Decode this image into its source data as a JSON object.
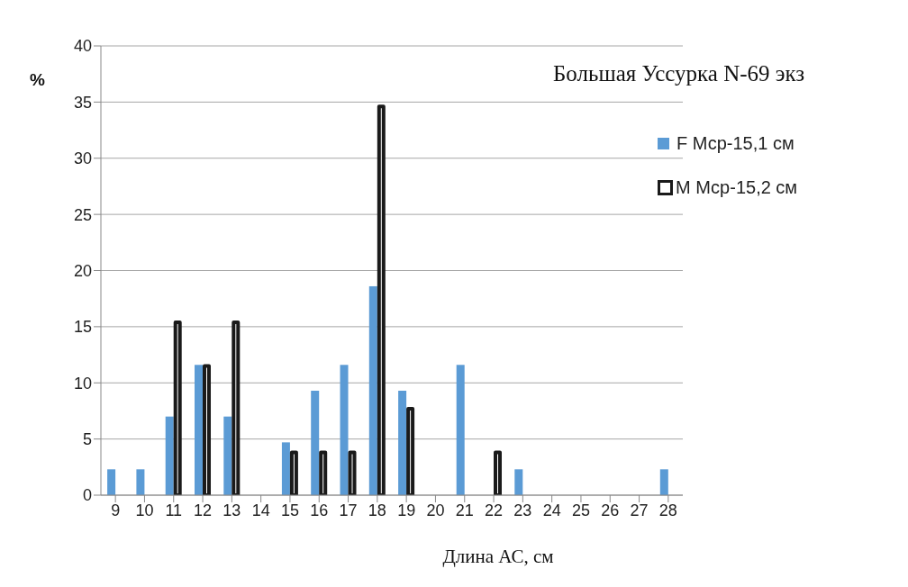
{
  "chart_data": {
    "type": "bar",
    "title": "Большая Уссурка N-69 экз",
    "xlabel": "Длина АС, см",
    "ylabel": "%",
    "categories": [
      "9",
      "10",
      "11",
      "12",
      "13",
      "14",
      "15",
      "16",
      "17",
      "18",
      "19",
      "20",
      "21",
      "22",
      "23",
      "24",
      "25",
      "26",
      "27",
      "28"
    ],
    "series": [
      {
        "name": "F Мср-15,1 см",
        "color": "#5b9bd5",
        "values": [
          2.3,
          2.3,
          7.0,
          11.6,
          7.0,
          0,
          4.7,
          9.3,
          11.6,
          18.6,
          9.3,
          0,
          11.6,
          0,
          2.3,
          0,
          0,
          0,
          0,
          2.3
        ]
      },
      {
        "name": "M Мср-15,2 см",
        "color": "#1a1a1a",
        "values": [
          0,
          0,
          15.4,
          11.5,
          15.4,
          0,
          3.8,
          3.8,
          3.8,
          34.6,
          7.7,
          0,
          0,
          3.8,
          0,
          0,
          0,
          0,
          0,
          0
        ]
      }
    ],
    "ylim": [
      0,
      40
    ],
    "yticks": [
      0,
      5,
      10,
      15,
      20,
      25,
      30,
      35,
      40
    ],
    "grid": "y",
    "legend": "top right"
  }
}
